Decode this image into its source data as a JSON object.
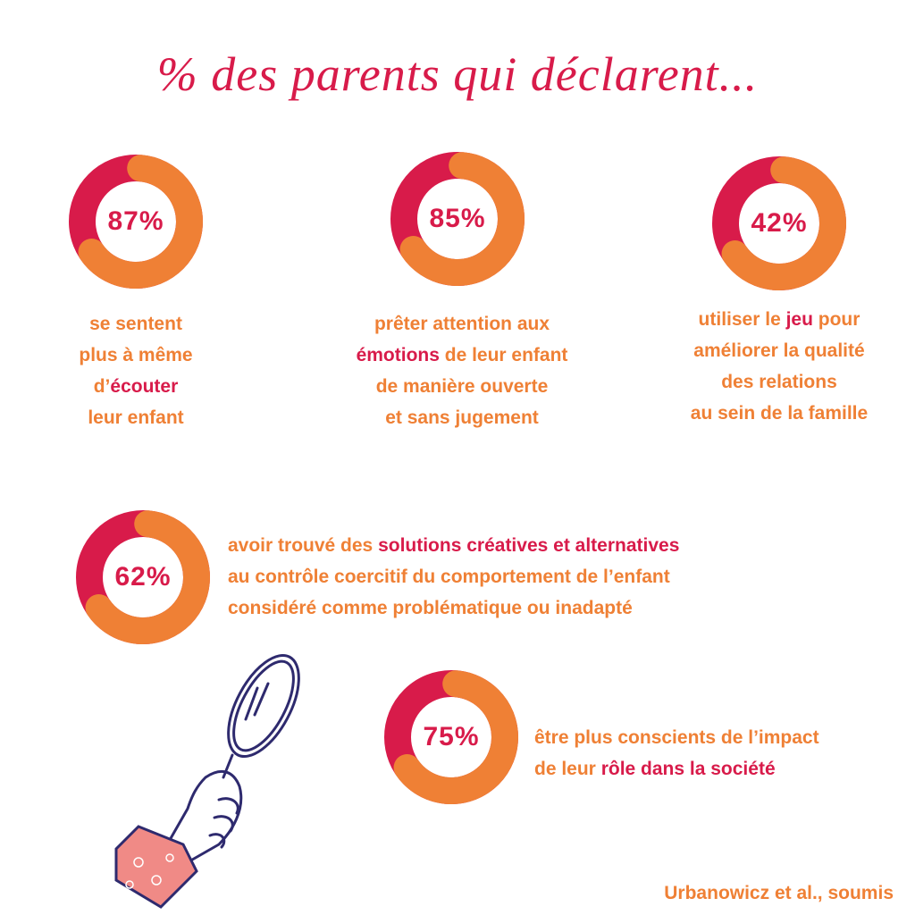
{
  "title": "% des parents qui déclarent...",
  "colors": {
    "pink": "#d81b4a",
    "orange": "#ef8035",
    "ink": "#2e2a6e",
    "sleeve": "#f08a86"
  },
  "chart_data": {
    "type": "donut",
    "title": "% des parents qui déclarent...",
    "items": [
      {
        "value": 87,
        "label": "87%",
        "lines": [
          [
            {
              "t": "se sentent"
            }
          ],
          [
            {
              "t": "plus à même"
            }
          ],
          [
            {
              "t": "d’"
            },
            {
              "t": "écouter",
              "hl": true
            }
          ],
          [
            {
              "t": "leur enfant"
            }
          ]
        ]
      },
      {
        "value": 85,
        "label": "85%",
        "lines": [
          [
            {
              "t": "prêter attention aux"
            }
          ],
          [
            {
              "t": "émotions",
              "hl": true
            },
            {
              "t": " de leur enfant"
            }
          ],
          [
            {
              "t": "de manière ouverte"
            }
          ],
          [
            {
              "t": "et sans jugement"
            }
          ]
        ]
      },
      {
        "value": 42,
        "label": "42%",
        "lines": [
          [
            {
              "t": "utiliser le "
            },
            {
              "t": "jeu",
              "hl": true
            },
            {
              "t": " pour"
            }
          ],
          [
            {
              "t": "améliorer la qualité"
            }
          ],
          [
            {
              "t": "des relations"
            }
          ],
          [
            {
              "t": "au sein de la famille"
            }
          ]
        ]
      },
      {
        "value": 62,
        "label": "62%",
        "lines": [
          [
            {
              "t": "avoir trouvé des "
            },
            {
              "t": "solutions créatives et alternatives",
              "hl": true
            }
          ],
          [
            {
              "t": "au contrôle coercitif du comportement de l’enfant"
            }
          ],
          [
            {
              "t": "considéré comme problématique ou inadapté"
            }
          ]
        ]
      },
      {
        "value": 75,
        "label": "75%",
        "lines": [
          [
            {
              "t": "être plus conscients de l’impact"
            }
          ],
          [
            {
              "t": "de leur "
            },
            {
              "t": "rôle dans la société",
              "hl": true
            }
          ]
        ]
      }
    ]
  },
  "source": "Urbanowicz et al., soumis",
  "icons": {
    "illustration": "hand-magnifying-glass-icon"
  }
}
